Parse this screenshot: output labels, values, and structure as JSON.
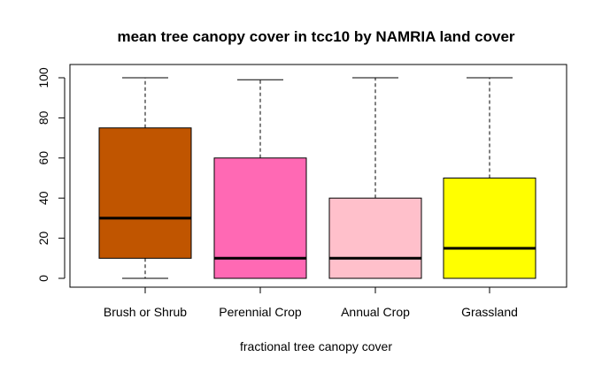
{
  "chart_data": {
    "type": "boxplot",
    "title": "mean tree canopy cover in tcc10 by NAMRIA land cover",
    "xlabel": "fractional tree canopy cover",
    "ylabel": "",
    "ylim": [
      0,
      100
    ],
    "yticks": [
      0,
      20,
      40,
      60,
      80,
      100
    ],
    "grid": false,
    "legend": "none",
    "categories": [
      "Brush or Shrub",
      "Perennial Crop",
      "Annual Crop",
      "Grassland"
    ],
    "boxes": [
      {
        "category": "Brush or Shrub",
        "whisker_low": 0,
        "q1": 10,
        "median": 30,
        "q3": 75,
        "whisker_high": 100,
        "color": "#C05500"
      },
      {
        "category": "Perennial Crop",
        "whisker_low": 0,
        "q1": 0,
        "median": 10,
        "q3": 60,
        "whisker_high": 99,
        "color": "#FF69B4"
      },
      {
        "category": "Annual Crop",
        "whisker_low": 0,
        "q1": 0,
        "median": 10,
        "q3": 40,
        "whisker_high": 100,
        "color": "#FFC0CB"
      },
      {
        "category": "Grassland",
        "whisker_low": 0,
        "q1": 0,
        "median": 15,
        "q3": 50,
        "whisker_high": 100,
        "color": "#FFFF00"
      }
    ]
  }
}
